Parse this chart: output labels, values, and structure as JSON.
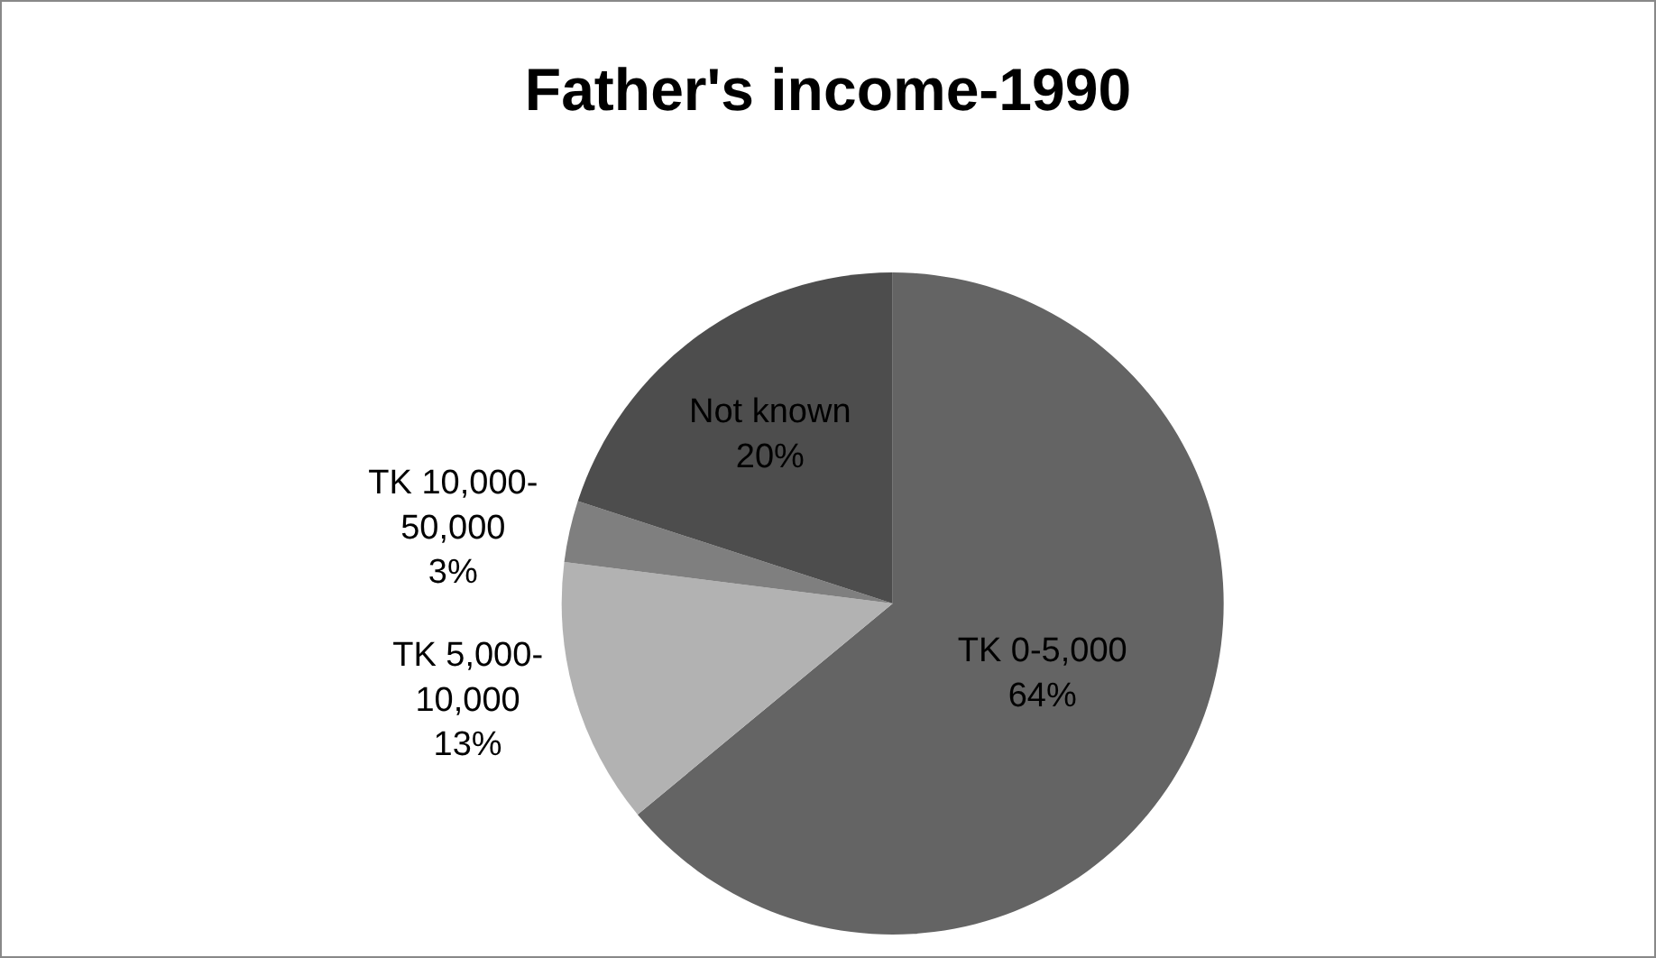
{
  "chart_data": {
    "type": "pie",
    "title": "Father's income-1990",
    "categories": [
      "TK 0-5,000",
      "TK 5,000-10,000",
      "TK 10,000-50,000",
      "Not known"
    ],
    "values": [
      64,
      13,
      3,
      20
    ],
    "value_labels": [
      "64%",
      "13%",
      "3%",
      "20%"
    ],
    "colors": [
      "#646464",
      "#b2b2b2",
      "#7f7f7f",
      "#4d4d4d"
    ],
    "legend": false
  }
}
